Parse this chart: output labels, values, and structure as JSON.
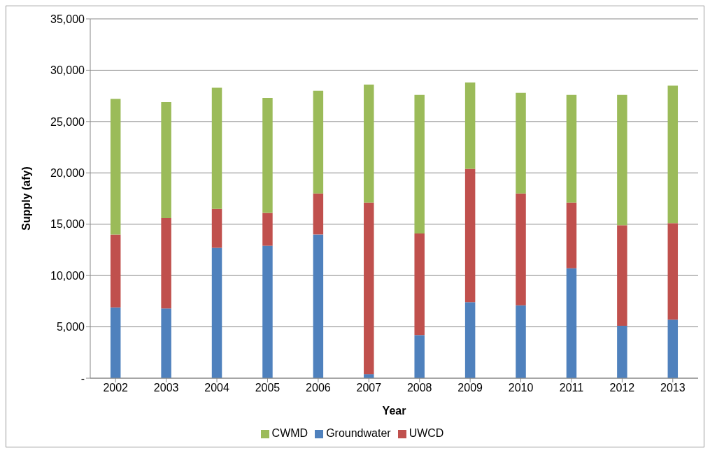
{
  "chart_data": {
    "type": "bar",
    "stacked": true,
    "xlabel": "Year",
    "ylabel": "Supply (afy)",
    "categories": [
      "2002",
      "2003",
      "2004",
      "2005",
      "2006",
      "2007",
      "2008",
      "2009",
      "2010",
      "2011",
      "2012",
      "2013"
    ],
    "series": [
      {
        "name": "Groundwater",
        "color": "#4f81bd",
        "values": [
          6900,
          6800,
          12700,
          12900,
          14000,
          400,
          4200,
          7400,
          7100,
          10700,
          5100,
          5700
        ]
      },
      {
        "name": "UWCD",
        "color": "#c0504d",
        "values": [
          7100,
          8800,
          3800,
          3200,
          4000,
          16700,
          9900,
          13000,
          10900,
          6400,
          9800,
          9400
        ]
      },
      {
        "name": "CWMD",
        "color": "#9bbb59",
        "values": [
          13200,
          11300,
          11800,
          11200,
          10000,
          11500,
          13500,
          8400,
          9800,
          10500,
          12700,
          13400
        ]
      }
    ],
    "ylim": [
      0,
      35000
    ],
    "yticks": [
      {
        "value": 0,
        "label": "-"
      },
      {
        "value": 5000,
        "label": "5,000"
      },
      {
        "value": 10000,
        "label": "10,000"
      },
      {
        "value": 15000,
        "label": "15,000"
      },
      {
        "value": 20000,
        "label": "20,000"
      },
      {
        "value": 25000,
        "label": "25,000"
      },
      {
        "value": 30000,
        "label": "30,000"
      },
      {
        "value": 35000,
        "label": "35,000"
      }
    ],
    "grid": "y",
    "legend": "bottom"
  }
}
